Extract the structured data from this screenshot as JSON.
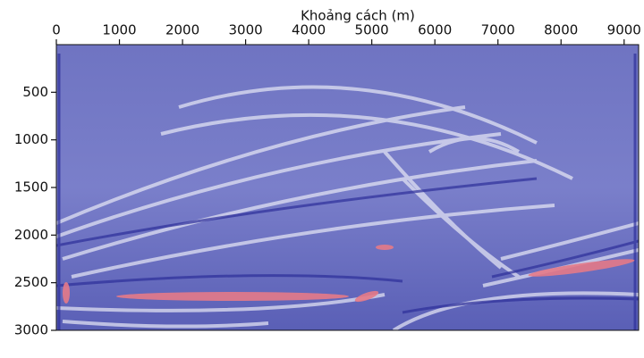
{
  "chart_data": {
    "type": "image",
    "x_label": "Khoảng cách (m)",
    "xlim": [
      0,
      9230
    ],
    "xticks": [
      0,
      1000,
      2000,
      3000,
      4000,
      5000,
      6000,
      7000,
      8000,
      9000
    ],
    "ylim": [
      0,
      3000
    ],
    "yticks": [
      500,
      1000,
      1500,
      2000,
      2500,
      3000
    ]
  }
}
